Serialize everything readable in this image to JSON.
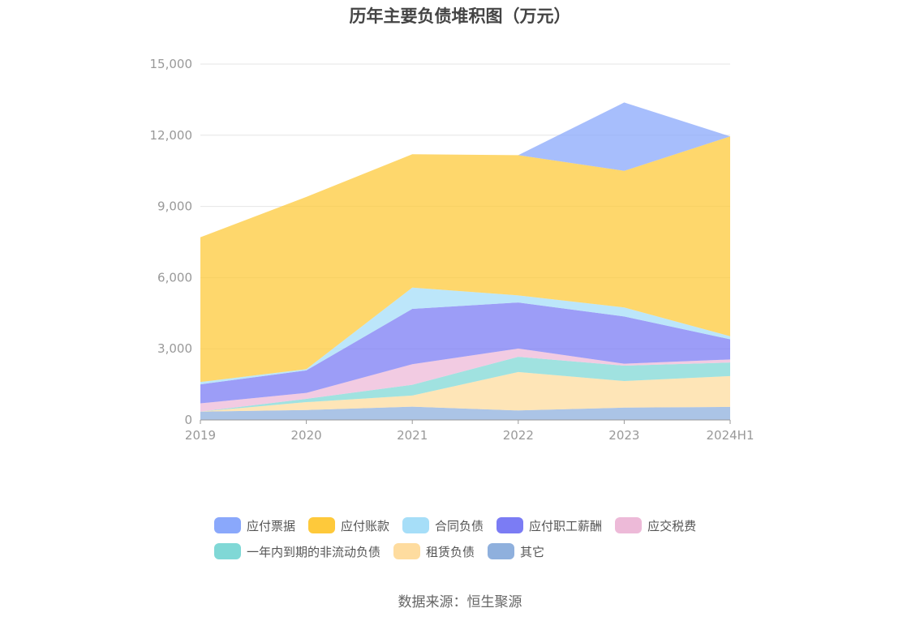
{
  "source": "数据来源：恒生聚源",
  "chart_data": {
    "type": "area",
    "stacked": true,
    "title": "历年主要负债堆积图（万元）",
    "x": [
      "2019",
      "2020",
      "2021",
      "2022",
      "2023",
      "2024H1"
    ],
    "ylim": [
      0,
      15000
    ],
    "yticks": [
      0,
      3000,
      6000,
      9000,
      12000,
      15000
    ],
    "ytick_labels": [
      "0",
      "3,000",
      "6,000",
      "9,000",
      "12,000",
      "15,000"
    ],
    "grid": true,
    "legend_position": "bottom",
    "series": [
      {
        "name": "其它",
        "color": "#8fb0dd",
        "values": [
          350,
          420,
          560,
          400,
          520,
          550
        ]
      },
      {
        "name": "租赁负债",
        "color": "#fedc9f",
        "values": [
          0,
          330,
          470,
          1620,
          1120,
          1300
        ]
      },
      {
        "name": "一年内到期的非流动负债",
        "color": "#80d8d6",
        "values": [
          0,
          140,
          450,
          640,
          650,
          570
        ]
      },
      {
        "name": "应交税费",
        "color": "#edbad8",
        "values": [
          350,
          250,
          870,
          350,
          80,
          130
        ]
      },
      {
        "name": "应付职工薪酬",
        "color": "#7b7cf4",
        "values": [
          800,
          950,
          2330,
          1940,
          1990,
          850
        ]
      },
      {
        "name": "合同负债",
        "color": "#a6def8",
        "values": [
          100,
          50,
          900,
          300,
          380,
          130
        ]
      },
      {
        "name": "应付账款",
        "color": "#fec93b",
        "values": [
          6100,
          7260,
          5620,
          5910,
          5760,
          8420
        ]
      },
      {
        "name": "应付票据",
        "color": "#8aa8fb",
        "values": [
          0,
          0,
          0,
          0,
          2880,
          0
        ]
      }
    ]
  },
  "legend": {
    "row1": [
      "应付票据",
      "应付账款",
      "合同负债",
      "应付职工薪酬",
      "应交税费"
    ],
    "row2": [
      "一年内到期的非流动负债",
      "租赁负债",
      "其它"
    ]
  }
}
